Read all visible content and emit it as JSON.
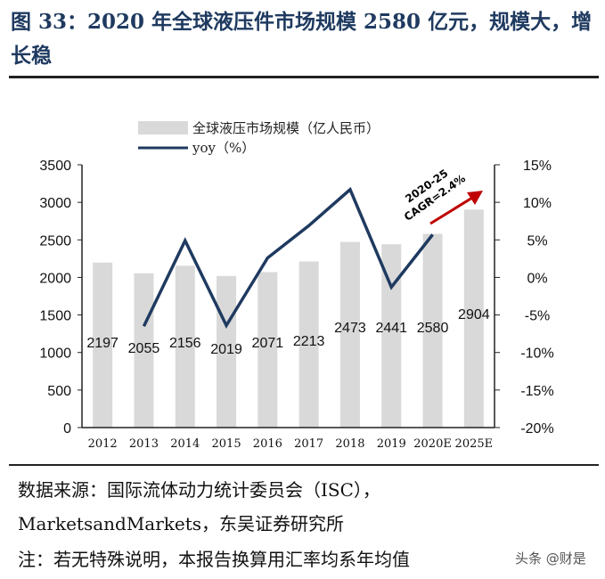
{
  "title": "图 33：2020 年全球液压件市场规模 2580 亿元，规模大，增长稳",
  "source_line1": "数据来源：国际流体动力统计委员会（ISC），",
  "source_line2": "MarketsandMarkets，东吴证券研究所",
  "note": "注：若无特殊说明，本报告换算用汇率均系年均值",
  "watermark": "头条 @财是",
  "chart_data": {
    "type": "bar+line",
    "categories": [
      "2012",
      "2013",
      "2014",
      "2015",
      "2016",
      "2017",
      "2018",
      "2019",
      "2020E",
      "2025E"
    ],
    "series": [
      {
        "name": "全球液压市场规模（亿人民币）",
        "type": "bar",
        "axis": "left",
        "color": "#d9d9d9",
        "values": [
          2197,
          2055,
          2156,
          2019,
          2071,
          2213,
          2473,
          2441,
          2580,
          2904
        ]
      },
      {
        "name": "yoy（%）",
        "type": "line",
        "axis": "right",
        "color": "#1f3a60",
        "values": [
          null,
          -6.5,
          4.9,
          -6.4,
          2.6,
          6.9,
          11.7,
          -1.3,
          5.7,
          null
        ]
      }
    ],
    "left_axis": {
      "range": [
        0,
        3500
      ],
      "ticks": [
        "0",
        "500",
        "1000",
        "1500",
        "2000",
        "2500",
        "3000",
        "3500"
      ]
    },
    "right_axis": {
      "range": [
        -20,
        15
      ],
      "ticks": [
        "-20%",
        "-15%",
        "-10%",
        "-5%",
        "0%",
        "5%",
        "10%",
        "15%"
      ]
    },
    "annotation": {
      "text_line1": "2020-25",
      "text_line2": "CAGR=2.4%",
      "arrow_color": "#c00000"
    },
    "legend": "top"
  }
}
